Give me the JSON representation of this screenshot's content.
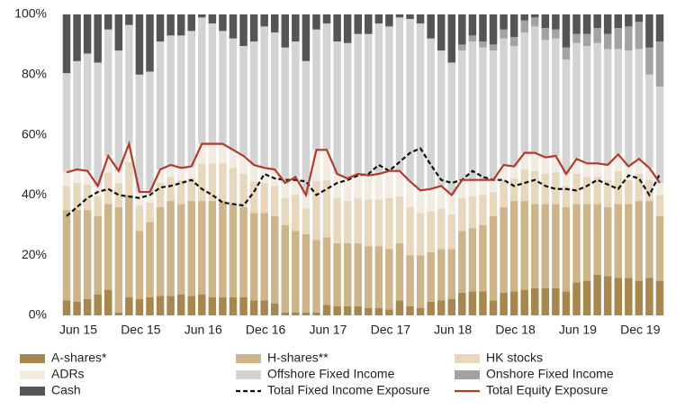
{
  "chart_data": {
    "type": "bar",
    "stacked": true,
    "categories": [
      "Jun 15",
      null,
      null,
      null,
      null,
      null,
      "Dec 15",
      null,
      null,
      null,
      null,
      null,
      "Jun 16",
      null,
      null,
      null,
      null,
      null,
      "Dec 16",
      null,
      null,
      null,
      null,
      null,
      "Jun 17",
      null,
      null,
      null,
      null,
      null,
      "Dec 17",
      null,
      null,
      null,
      null,
      null,
      "Jun 18",
      null,
      null,
      null,
      null,
      null,
      "Dec 18",
      null,
      null,
      null,
      null,
      null,
      "Jun 19",
      null,
      null,
      null,
      null,
      null,
      "Dec 19",
      null,
      null,
      null
    ],
    "ylim": [
      0,
      100
    ],
    "yticks": [
      {
        "value": 0,
        "label": "0%"
      },
      {
        "value": 20,
        "label": "20%"
      },
      {
        "value": 40,
        "label": "40%"
      },
      {
        "value": 60,
        "label": "60%"
      },
      {
        "value": 80,
        "label": "80%"
      },
      {
        "value": 100,
        "label": "100%"
      }
    ],
    "series": [
      {
        "name": "A-shares*",
        "color": "#a8874f",
        "values": [
          5,
          4.5,
          5.5,
          7,
          8.5,
          1,
          6,
          5.5,
          6,
          6.5,
          6.5,
          7,
          6.5,
          7,
          6,
          6,
          6,
          6,
          5,
          5,
          4,
          1,
          1,
          1,
          1,
          3.5,
          3,
          3,
          3,
          2.5,
          2.5,
          2,
          5,
          3,
          2.5,
          4.5,
          5,
          5.5,
          7.5,
          8,
          8,
          5,
          7.5,
          8,
          8.5,
          9,
          9,
          9,
          8,
          11,
          11.5,
          13.5,
          13,
          12.5,
          12.5,
          11.5,
          12.5,
          11.5
        ]
      },
      {
        "name": "H-shares**",
        "color": "#cdb48a",
        "values": [
          30,
          30.5,
          29.5,
          26,
          28.5,
          35,
          34,
          22.5,
          25,
          29.5,
          31.5,
          30,
          31.5,
          31,
          32,
          32,
          31,
          30,
          29,
          29,
          29,
          29,
          27,
          26,
          24,
          22.5,
          21,
          21,
          21,
          20.5,
          20.5,
          20,
          19,
          17,
          17.5,
          16.5,
          17,
          16.5,
          20.5,
          21,
          22,
          28,
          28.5,
          30,
          29.5,
          28,
          28,
          28,
          28,
          26,
          25.5,
          23.5,
          23,
          24.5,
          24.5,
          26.5,
          25.5,
          21.5
        ]
      },
      {
        "name": "HK stocks",
        "color": "#e6d7bd",
        "values": [
          8,
          9,
          8.5,
          6.5,
          10.5,
          8,
          11,
          8.5,
          6.5,
          8,
          8,
          8,
          7.5,
          12.5,
          12.5,
          12.5,
          12,
          11,
          10.5,
          10,
          10,
          9,
          12,
          8.5,
          19.5,
          19,
          15,
          14,
          15,
          15.5,
          15.5,
          17,
          15.5,
          16,
          14,
          13.5,
          13.5,
          11.5,
          11,
          10.5,
          10,
          8,
          9,
          7.5,
          10.5,
          11,
          10,
          10.5,
          7,
          10,
          9,
          9,
          9,
          11,
          8,
          9,
          7,
          7
        ]
      },
      {
        "name": "ADRs",
        "color": "#f1ebe1",
        "values": [
          4.5,
          4.5,
          4.5,
          3.5,
          5.5,
          4,
          6,
          4.5,
          3.5,
          4.5,
          4,
          4,
          4,
          6.5,
          6.5,
          6.5,
          6,
          6,
          5.5,
          5,
          5.5,
          5,
          6,
          4.5,
          10.5,
          10,
          8,
          7.5,
          8,
          8,
          8.5,
          9,
          8.5,
          8.5,
          7.5,
          7.5,
          7.5,
          6.5,
          6,
          5.5,
          5,
          4,
          5,
          4,
          5.5,
          6,
          5.5,
          5.5,
          4,
          5,
          4.5,
          4.5,
          5,
          5.5,
          4.5,
          5,
          4,
          4
        ]
      },
      {
        "name": "Offshore Fixed Income",
        "color": "#d3d3d3",
        "values": [
          33,
          36,
          39,
          41,
          42,
          40,
          39.5,
          39,
          40,
          42.5,
          43,
          44,
          45,
          42,
          40,
          37.5,
          37,
          36.5,
          41,
          47,
          45.5,
          45,
          45,
          44.5,
          40,
          42,
          44,
          45,
          46.5,
          47,
          50,
          48,
          51,
          54,
          55.5,
          50,
          45,
          44,
          43,
          46,
          44,
          43,
          42,
          40,
          40,
          42,
          39,
          39,
          38,
          38.5,
          39,
          40,
          38.5,
          35,
          38.5,
          36.5,
          31,
          32
        ]
      },
      {
        "name": "Onshore Fixed Income",
        "color": "#a3a3a3",
        "values": [
          0,
          0,
          0,
          0,
          0,
          0,
          0,
          0,
          0,
          0,
          0,
          0,
          0,
          0,
          0,
          0,
          0,
          0,
          0,
          0,
          0,
          0,
          0,
          0,
          0,
          0,
          0,
          0,
          0,
          0,
          0,
          0,
          0,
          0,
          0,
          0,
          0,
          0,
          2,
          2,
          2,
          2,
          3,
          3,
          4,
          3,
          4,
          3,
          4,
          3,
          4,
          5,
          5,
          7,
          8,
          9,
          9,
          15
        ]
      },
      {
        "name": "Cash",
        "color": "#555555",
        "values": [
          19.5,
          15.5,
          13,
          16,
          5,
          12,
          3.5,
          20,
          19,
          9,
          7,
          7,
          5.5,
          1,
          3,
          5.5,
          8,
          10.5,
          9,
          4,
          6,
          11,
          9,
          15.5,
          5,
          3,
          9,
          9.5,
          6.5,
          6.5,
          3,
          4,
          1,
          1.5,
          3,
          8,
          12,
          16,
          10,
          7,
          9,
          10,
          5,
          7.5,
          2,
          1,
          4.5,
          5,
          11,
          6.5,
          6.5,
          4.5,
          6.5,
          4.5,
          4,
          2.5,
          11,
          9
        ]
      },
      {
        "name": "Total Fixed Income Exposure",
        "type": "line",
        "dashed": true,
        "color": "#111111",
        "values": [
          33,
          36,
          39,
          41,
          42,
          40,
          39.5,
          39,
          40,
          42.5,
          43,
          44,
          45,
          42,
          40,
          37.5,
          37,
          36.5,
          41,
          47,
          45.5,
          45,
          45,
          44.5,
          40,
          42,
          44,
          45,
          46.5,
          47,
          50,
          48,
          51,
          54,
          55.5,
          50,
          45,
          44,
          45,
          48,
          46,
          45,
          45,
          43,
          44,
          45,
          43,
          42,
          42,
          41.5,
          43,
          45,
          43.5,
          42,
          46.5,
          45.5,
          40,
          47
        ]
      },
      {
        "name": "Total Equity Exposure",
        "type": "line",
        "dashed": false,
        "color": "#b03a2e",
        "values": [
          47.5,
          48.5,
          48,
          43,
          53,
          48,
          57,
          41,
          41,
          48.5,
          50,
          49,
          49.5,
          57,
          57,
          57,
          55,
          53,
          50,
          49,
          48.5,
          44,
          46,
          40,
          55,
          55,
          47,
          45.5,
          47,
          46.5,
          47,
          48,
          48,
          44.5,
          41.5,
          42,
          43,
          40,
          45,
          45,
          45,
          45,
          50,
          49.5,
          54,
          54,
          52.5,
          53,
          47,
          52,
          50.5,
          50.5,
          50,
          53.5,
          49.5,
          52,
          49,
          44
        ]
      }
    ]
  }
}
